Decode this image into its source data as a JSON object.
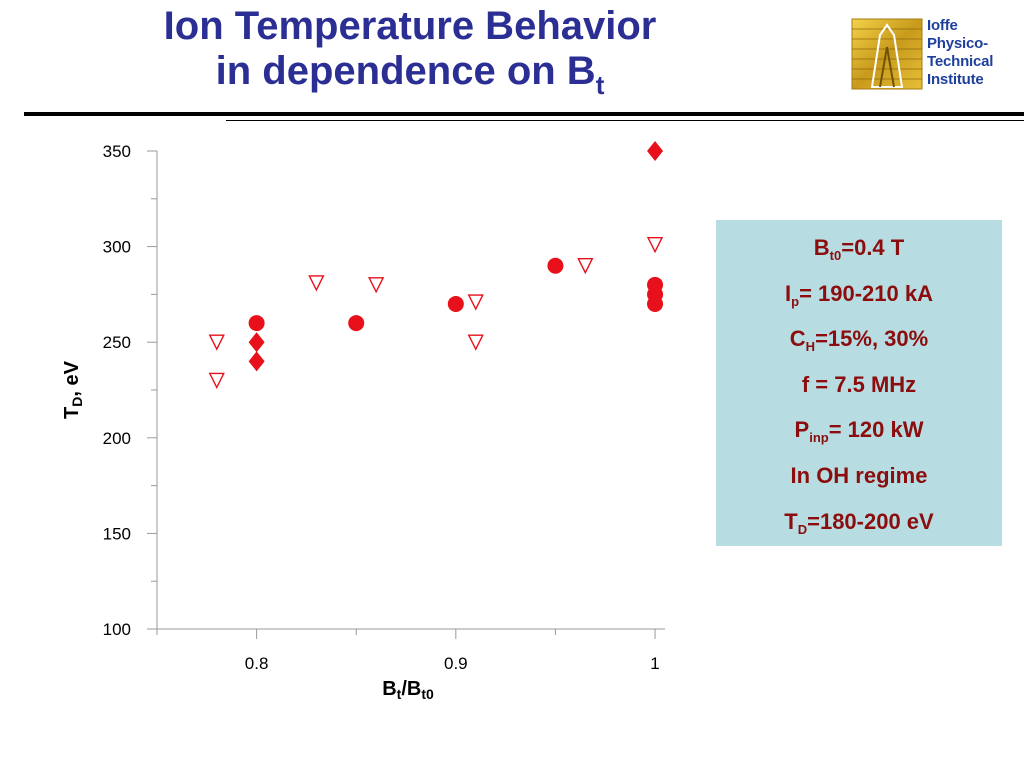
{
  "slide": {
    "title_line1": "Ion Temperature Behavior",
    "title_line2": "in dependence on B",
    "title_sub": "t"
  },
  "logo": {
    "lines": [
      "Ioffe",
      "Physico-",
      "Technical",
      "Institute"
    ],
    "text_color": "#1f3f9c"
  },
  "info_box": {
    "background": "#b7dde3",
    "text_color": "#8b0d0d",
    "rows": [
      {
        "main": "B",
        "sub": "t0",
        "rest": "=0.4 T"
      },
      {
        "main": "I",
        "sub": "p",
        "rest": "= 190-210 kA"
      },
      {
        "main": "C",
        "sub": "H",
        "rest": "=15%, 30%"
      },
      {
        "main": "f = 7.5 MHz",
        "sub": "",
        "rest": ""
      },
      {
        "main": "P",
        "sub": "inp",
        "rest": "= 120 kW"
      },
      {
        "main": "In OH regime",
        "sub": "",
        "rest": ""
      },
      {
        "main": "T",
        "sub": "D",
        "rest": "=180-200 eV"
      }
    ]
  },
  "chart_data": {
    "type": "scatter",
    "title": "",
    "xlabel": {
      "main": "B",
      "sub1": "t",
      "mid": "/B",
      "sub2": "t0"
    },
    "ylabel": {
      "main": "T",
      "sub": "D",
      "rest": ", eV"
    },
    "xlim": [
      0.75,
      1.005
    ],
    "ylim": [
      100,
      350
    ],
    "xticks": [
      0.8,
      0.9,
      1.0
    ],
    "xtick_labels": [
      "0.8",
      "0.9",
      "1"
    ],
    "yticks": [
      100,
      150,
      200,
      250,
      300,
      350
    ],
    "ytick_labels": [
      "100",
      "150",
      "200",
      "250",
      "300",
      "350"
    ],
    "grid": false,
    "legend": "none",
    "marker_color": "#e8101a",
    "series": [
      {
        "marker": "circle",
        "points": [
          [
            0.8,
            260
          ],
          [
            0.85,
            260
          ],
          [
            0.9,
            270
          ],
          [
            0.95,
            290
          ],
          [
            1.0,
            280
          ],
          [
            1.0,
            275
          ],
          [
            1.0,
            270
          ]
        ]
      },
      {
        "marker": "diamond",
        "points": [
          [
            0.8,
            250
          ],
          [
            0.8,
            240
          ],
          [
            1.0,
            350
          ]
        ]
      },
      {
        "marker": "triangle-down-open",
        "points": [
          [
            0.78,
            250
          ],
          [
            0.78,
            230
          ],
          [
            0.83,
            281
          ],
          [
            0.86,
            280
          ],
          [
            0.91,
            271
          ],
          [
            0.91,
            250
          ],
          [
            0.965,
            290
          ],
          [
            1.0,
            301
          ]
        ]
      }
    ]
  }
}
